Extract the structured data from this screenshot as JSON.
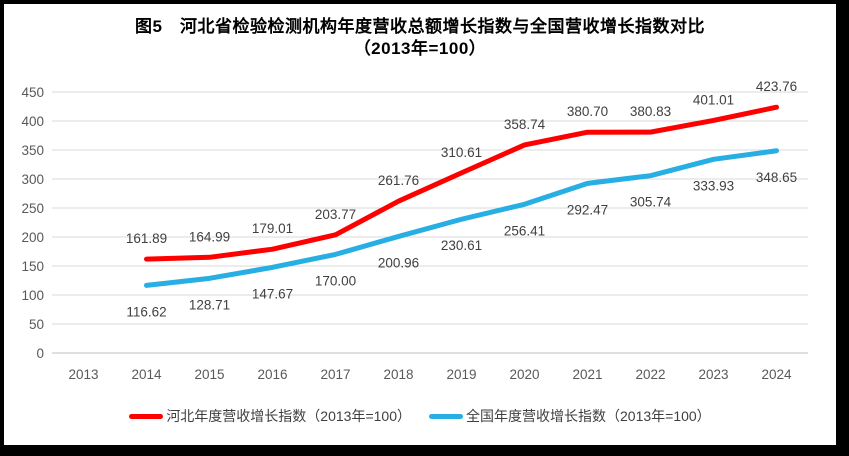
{
  "chart": {
    "title_line1": "图5　河北省检验检测机构年度营收总额增长指数与全国营收增长指数对比",
    "title_line2": "（2013年=100）"
  },
  "chart_data": {
    "type": "line",
    "title": "图5 河北省检验检测机构年度营收总额增长指数与全国营收增长指数对比（2013年=100）",
    "categories": [
      "2013",
      "2014",
      "2015",
      "2016",
      "2017",
      "2018",
      "2019",
      "2020",
      "2021",
      "2022",
      "2023",
      "2024"
    ],
    "series": [
      {
        "name": "河北年度营收增长指数（2013年=100）",
        "color": "#ff0000",
        "label_position": "above",
        "values": [
          null,
          161.89,
          164.99,
          179.01,
          203.77,
          261.76,
          310.61,
          358.74,
          380.7,
          380.83,
          401.01,
          423.76
        ],
        "labels": [
          null,
          "161.89",
          "164.99",
          "179.01",
          "203.77",
          "261.76",
          "310.61",
          "358.74",
          "380.70",
          "380.83",
          "401.01",
          "423.76"
        ]
      },
      {
        "name": "全国年度营收增长指数（2013年=100）",
        "color": "#27aee3",
        "label_position": "below",
        "values": [
          null,
          116.62,
          128.71,
          147.67,
          170.0,
          200.96,
          230.61,
          256.41,
          292.47,
          305.74,
          333.93,
          348.65
        ],
        "labels": [
          null,
          "116.62",
          "128.71",
          "147.67",
          "170.00",
          "200.96",
          "230.61",
          "256.41",
          "292.47",
          "305.74",
          "333.93",
          "348.65"
        ]
      }
    ],
    "ylim": [
      0,
      450
    ],
    "ytick_step": 50,
    "grid": "horizontal",
    "legend_position": "bottom"
  },
  "colors": {
    "grid": "#d9d9d9",
    "zero_line": "#bfbfbf",
    "axis_text": "#595959",
    "data_label": "#404040",
    "frame": "#000000"
  }
}
